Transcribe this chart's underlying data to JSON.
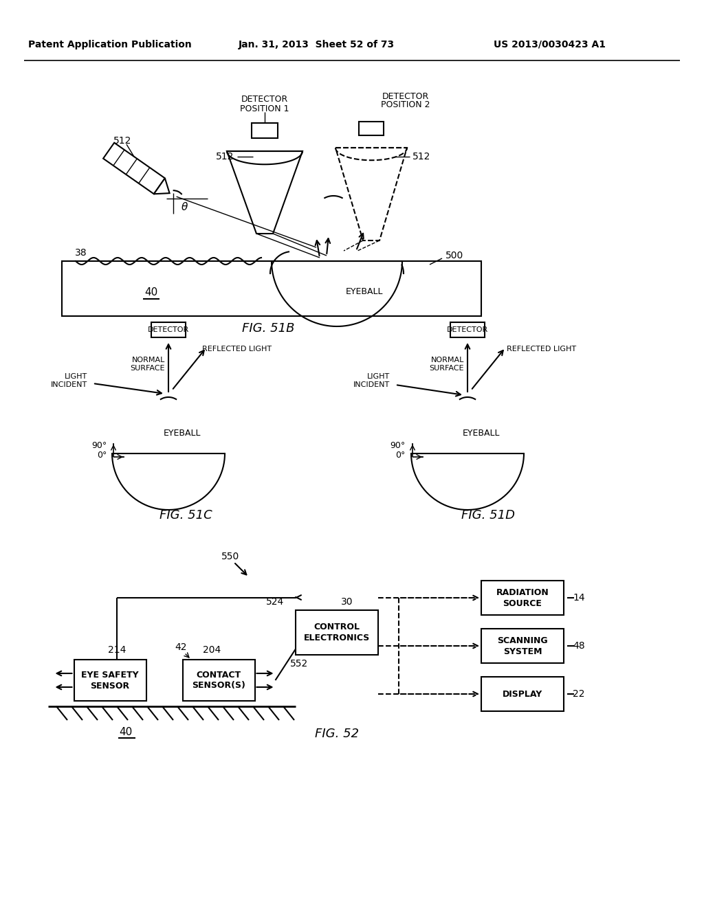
{
  "header_left": "Patent Application Publication",
  "header_mid": "Jan. 31, 2013  Sheet 52 of 73",
  "header_right": "US 2013/0030423 A1",
  "fig51b_label": "FIG. 51B",
  "fig51c_label": "FIG. 51C",
  "fig51d_label": "FIG. 51D",
  "fig52_label": "FIG. 52",
  "bg_color": "#ffffff",
  "line_color": "#000000",
  "font_color": "#000000"
}
